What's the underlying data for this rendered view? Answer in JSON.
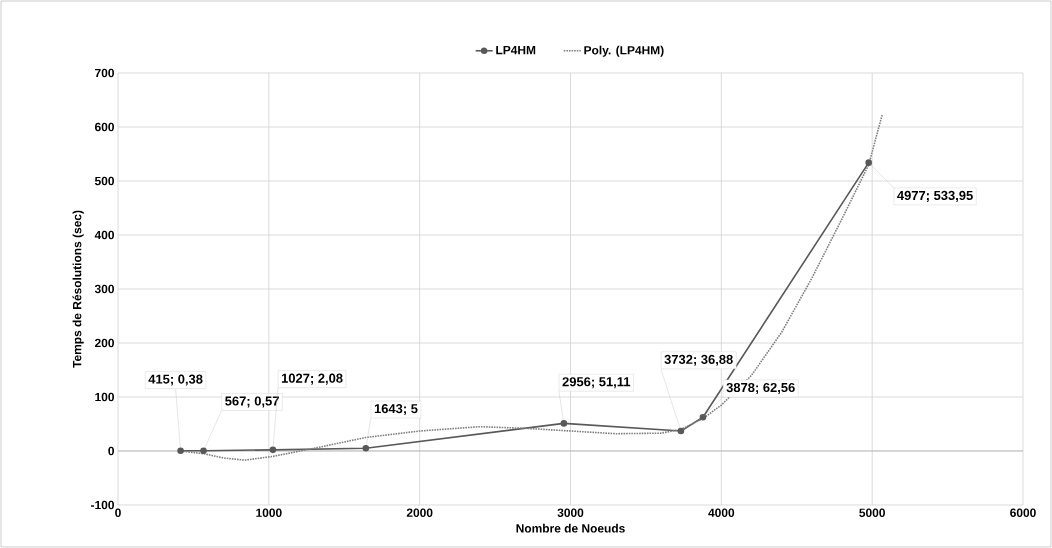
{
  "chart_data": {
    "type": "line",
    "xlabel": "Nombre de Noeuds",
    "ylabel": "Temps de Résolutions  (sec)",
    "xlim": [
      0,
      6000
    ],
    "ylim": [
      -100,
      700
    ],
    "xticks": [
      0,
      1000,
      2000,
      3000,
      4000,
      5000,
      6000
    ],
    "yticks": [
      -100,
      0,
      100,
      200,
      300,
      400,
      500,
      600,
      700
    ],
    "grid": true,
    "legend": "top",
    "series": [
      {
        "name": "LP4HM",
        "color": "#595959",
        "marker": "circle",
        "line_style": "solid",
        "x": [
          415,
          567,
          1027,
          1643,
          2956,
          3732,
          3878,
          4977
        ],
        "values": [
          0.38,
          0.57,
          2.08,
          5,
          51.11,
          36.88,
          62.56,
          533.95
        ],
        "value_labels": [
          "415; 0,38",
          "567; 0,57",
          "1027; 2,08",
          "1643; 5",
          "2956; 51,11",
          "3732; 36,88",
          "3878; 62,56",
          "4977; 533,95"
        ]
      },
      {
        "name": "Poly. (LP4HM)",
        "type": "line",
        "color": "#808080",
        "marker": "none",
        "line_style": "dotted",
        "x": [
          415,
          567,
          700,
          840,
          1027,
          1300,
          1643,
          2000,
          2400,
          2700,
          3000,
          3300,
          3600,
          3732,
          3878,
          4000,
          4200,
          4400,
          4600,
          4800,
          4977,
          5066
        ],
        "values": [
          0,
          -5,
          -13,
          -17,
          -10,
          5,
          25,
          37,
          45,
          42,
          37,
          32,
          33,
          40,
          60,
          85,
          140,
          220,
          320,
          430,
          530,
          622
        ]
      }
    ]
  }
}
